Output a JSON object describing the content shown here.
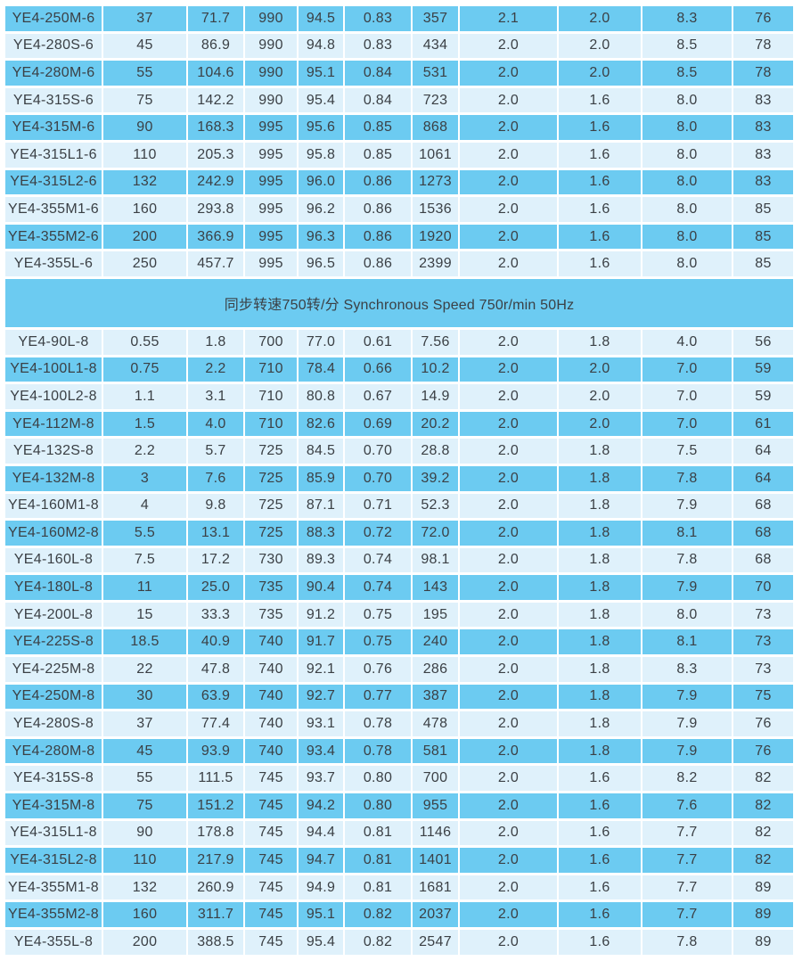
{
  "colors": {
    "row_dark": "#6CCBF1",
    "row_light": "#DFF1FB",
    "text": "#3b4045",
    "background": "#ffffff"
  },
  "table": {
    "column_count": 11,
    "sections": [
      {
        "name": "synchronous-speed-1000",
        "start_shade": "dark",
        "rows": [
          [
            "YE4-250M-6",
            "37",
            "71.7",
            "990",
            "94.5",
            "0.83",
            "357",
            "2.1",
            "2.0",
            "8.3",
            "76"
          ],
          [
            "YE4-280S-6",
            "45",
            "86.9",
            "990",
            "94.8",
            "0.83",
            "434",
            "2.0",
            "2.0",
            "8.5",
            "78"
          ],
          [
            "YE4-280M-6",
            "55",
            "104.6",
            "990",
            "95.1",
            "0.84",
            "531",
            "2.0",
            "2.0",
            "8.5",
            "78"
          ],
          [
            "YE4-315S-6",
            "75",
            "142.2",
            "990",
            "95.4",
            "0.84",
            "723",
            "2.0",
            "1.6",
            "8.0",
            "83"
          ],
          [
            "YE4-315M-6",
            "90",
            "168.3",
            "995",
            "95.6",
            "0.85",
            "868",
            "2.0",
            "1.6",
            "8.0",
            "83"
          ],
          [
            "YE4-315L1-6",
            "110",
            "205.3",
            "995",
            "95.8",
            "0.85",
            "1061",
            "2.0",
            "1.6",
            "8.0",
            "83"
          ],
          [
            "YE4-315L2-6",
            "132",
            "242.9",
            "995",
            "96.0",
            "0.86",
            "1273",
            "2.0",
            "1.6",
            "8.0",
            "83"
          ],
          [
            "YE4-355M1-6",
            "160",
            "293.8",
            "995",
            "96.2",
            "0.86",
            "1536",
            "2.0",
            "1.6",
            "8.0",
            "85"
          ],
          [
            "YE4-355M2-6",
            "200",
            "366.9",
            "995",
            "96.3",
            "0.86",
            "1920",
            "2.0",
            "1.6",
            "8.0",
            "85"
          ],
          [
            "YE4-355L-6",
            "250",
            "457.7",
            "995",
            "96.5",
            "0.86",
            "2399",
            "2.0",
            "1.6",
            "8.0",
            "85"
          ]
        ]
      },
      {
        "name": "synchronous-speed-750",
        "header": "同步转速750转/分 Synchronous Speed 750r/min 50Hz",
        "start_shade": "light",
        "rows": [
          [
            "YE4-90L-8",
            "0.55",
            "1.8",
            "700",
            "77.0",
            "0.61",
            "7.56",
            "2.0",
            "1.8",
            "4.0",
            "56"
          ],
          [
            "YE4-100L1-8",
            "0.75",
            "2.2",
            "710",
            "78.4",
            "0.66",
            "10.2",
            "2.0",
            "2.0",
            "7.0",
            "59"
          ],
          [
            "YE4-100L2-8",
            "1.1",
            "3.1",
            "710",
            "80.8",
            "0.67",
            "14.9",
            "2.0",
            "2.0",
            "7.0",
            "59"
          ],
          [
            "YE4-112M-8",
            "1.5",
            "4.0",
            "710",
            "82.6",
            "0.69",
            "20.2",
            "2.0",
            "2.0",
            "7.0",
            "61"
          ],
          [
            "YE4-132S-8",
            "2.2",
            "5.7",
            "725",
            "84.5",
            "0.70",
            "28.8",
            "2.0",
            "1.8",
            "7.5",
            "64"
          ],
          [
            "YE4-132M-8",
            "3",
            "7.6",
            "725",
            "85.9",
            "0.70",
            "39.2",
            "2.0",
            "1.8",
            "7.8",
            "64"
          ],
          [
            "YE4-160M1-8",
            "4",
            "9.8",
            "725",
            "87.1",
            "0.71",
            "52.3",
            "2.0",
            "1.8",
            "7.9",
            "68"
          ],
          [
            "YE4-160M2-8",
            "5.5",
            "13.1",
            "725",
            "88.3",
            "0.72",
            "72.0",
            "2.0",
            "1.8",
            "8.1",
            "68"
          ],
          [
            "YE4-160L-8",
            "7.5",
            "17.2",
            "730",
            "89.3",
            "0.74",
            "98.1",
            "2.0",
            "1.8",
            "7.8",
            "68"
          ],
          [
            "YE4-180L-8",
            "11",
            "25.0",
            "735",
            "90.4",
            "0.74",
            "143",
            "2.0",
            "1.8",
            "7.9",
            "70"
          ],
          [
            "YE4-200L-8",
            "15",
            "33.3",
            "735",
            "91.2",
            "0.75",
            "195",
            "2.0",
            "1.8",
            "8.0",
            "73"
          ],
          [
            "YE4-225S-8",
            "18.5",
            "40.9",
            "740",
            "91.7",
            "0.75",
            "240",
            "2.0",
            "1.8",
            "8.1",
            "73"
          ],
          [
            "YE4-225M-8",
            "22",
            "47.8",
            "740",
            "92.1",
            "0.76",
            "286",
            "2.0",
            "1.8",
            "8.3",
            "73"
          ],
          [
            "YE4-250M-8",
            "30",
            "63.9",
            "740",
            "92.7",
            "0.77",
            "387",
            "2.0",
            "1.8",
            "7.9",
            "75"
          ],
          [
            "YE4-280S-8",
            "37",
            "77.4",
            "740",
            "93.1",
            "0.78",
            "478",
            "2.0",
            "1.8",
            "7.9",
            "76"
          ],
          [
            "YE4-280M-8",
            "45",
            "93.9",
            "740",
            "93.4",
            "0.78",
            "581",
            "2.0",
            "1.8",
            "7.9",
            "76"
          ],
          [
            "YE4-315S-8",
            "55",
            "111.5",
            "745",
            "93.7",
            "0.80",
            "700",
            "2.0",
            "1.6",
            "8.2",
            "82"
          ],
          [
            "YE4-315M-8",
            "75",
            "151.2",
            "745",
            "94.2",
            "0.80",
            "955",
            "2.0",
            "1.6",
            "7.6",
            "82"
          ],
          [
            "YE4-315L1-8",
            "90",
            "178.8",
            "745",
            "94.4",
            "0.81",
            "1146",
            "2.0",
            "1.6",
            "7.7",
            "82"
          ],
          [
            "YE4-315L2-8",
            "110",
            "217.9",
            "745",
            "94.7",
            "0.81",
            "1401",
            "2.0",
            "1.6",
            "7.7",
            "82"
          ],
          [
            "YE4-355M1-8",
            "132",
            "260.9",
            "745",
            "94.9",
            "0.81",
            "1681",
            "2.0",
            "1.6",
            "7.7",
            "89"
          ],
          [
            "YE4-355M2-8",
            "160",
            "311.7",
            "745",
            "95.1",
            "0.82",
            "2037",
            "2.0",
            "1.6",
            "7.7",
            "89"
          ],
          [
            "YE4-355L-8",
            "200",
            "388.5",
            "745",
            "95.4",
            "0.82",
            "2547",
            "2.0",
            "1.6",
            "7.8",
            "89"
          ]
        ]
      }
    ]
  }
}
